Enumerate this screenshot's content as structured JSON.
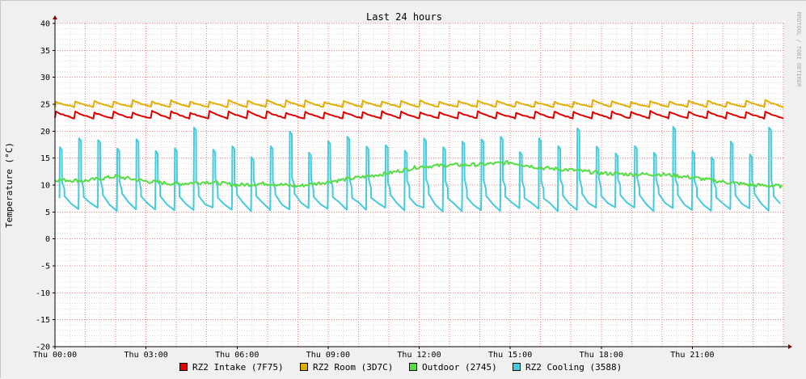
{
  "chart_data": {
    "type": "line",
    "title": "Last 24 hours",
    "ylabel": "Temperature (°C)",
    "xlabel": "",
    "ylim": [
      -20,
      40
    ],
    "yticks": [
      40,
      35,
      30,
      25,
      20,
      15,
      10,
      5,
      0,
      -5,
      -10,
      -15,
      -20
    ],
    "xticks": [
      "Thu 00:00",
      "Thu 03:00",
      "Thu 06:00",
      "Thu 09:00",
      "Thu 12:00",
      "Thu 15:00",
      "Thu 18:00",
      "Thu 21:00"
    ],
    "xlim_hours": [
      0,
      24
    ],
    "watermark": "RRDTOOL / TOBI OETIKER",
    "grid": true,
    "legend_position": "bottom",
    "series": [
      {
        "name": "RZ2 Intake (7F75)",
        "color": "#e00000",
        "style": "sawtooth",
        "cycles": 38,
        "low": 22.4,
        "high": 23.6,
        "trend": [
          [
            0,
            22.8
          ],
          [
            24,
            22.8
          ]
        ]
      },
      {
        "name": "RZ2 Room (3D7C)",
        "color": "#e0b000",
        "style": "sawtooth",
        "cycles": 38,
        "low": 24.5,
        "high": 25.6,
        "trend": [
          [
            0,
            25.0
          ],
          [
            24,
            25.0
          ]
        ]
      },
      {
        "name": "Outdoor (2745)",
        "color": "#55dd44",
        "style": "noisy",
        "trend": [
          [
            0,
            11.0
          ],
          [
            1,
            10.8
          ],
          [
            2,
            11.6
          ],
          [
            3,
            10.7
          ],
          [
            4,
            10.2
          ],
          [
            5,
            10.6
          ],
          [
            6,
            10.0
          ],
          [
            7,
            10.3
          ],
          [
            8,
            9.8
          ],
          [
            9,
            10.6
          ],
          [
            10,
            11.4
          ],
          [
            11,
            12.2
          ],
          [
            12,
            13.4
          ],
          [
            13,
            13.7
          ],
          [
            14,
            13.8
          ],
          [
            15,
            14.2
          ],
          [
            16,
            13.2
          ],
          [
            17,
            12.8
          ],
          [
            18,
            12.2
          ],
          [
            19,
            12.0
          ],
          [
            20,
            12.0
          ],
          [
            21,
            11.4
          ],
          [
            22,
            10.6
          ],
          [
            23,
            10.0
          ],
          [
            24,
            9.8
          ]
        ]
      },
      {
        "name": "RZ2 Cooling (3588)",
        "color": "#44ccdd",
        "style": "spikes",
        "cycles": 38,
        "low": 5.5,
        "high": 19.0,
        "trend": [
          [
            0,
            0
          ],
          [
            24,
            0
          ]
        ]
      }
    ]
  }
}
